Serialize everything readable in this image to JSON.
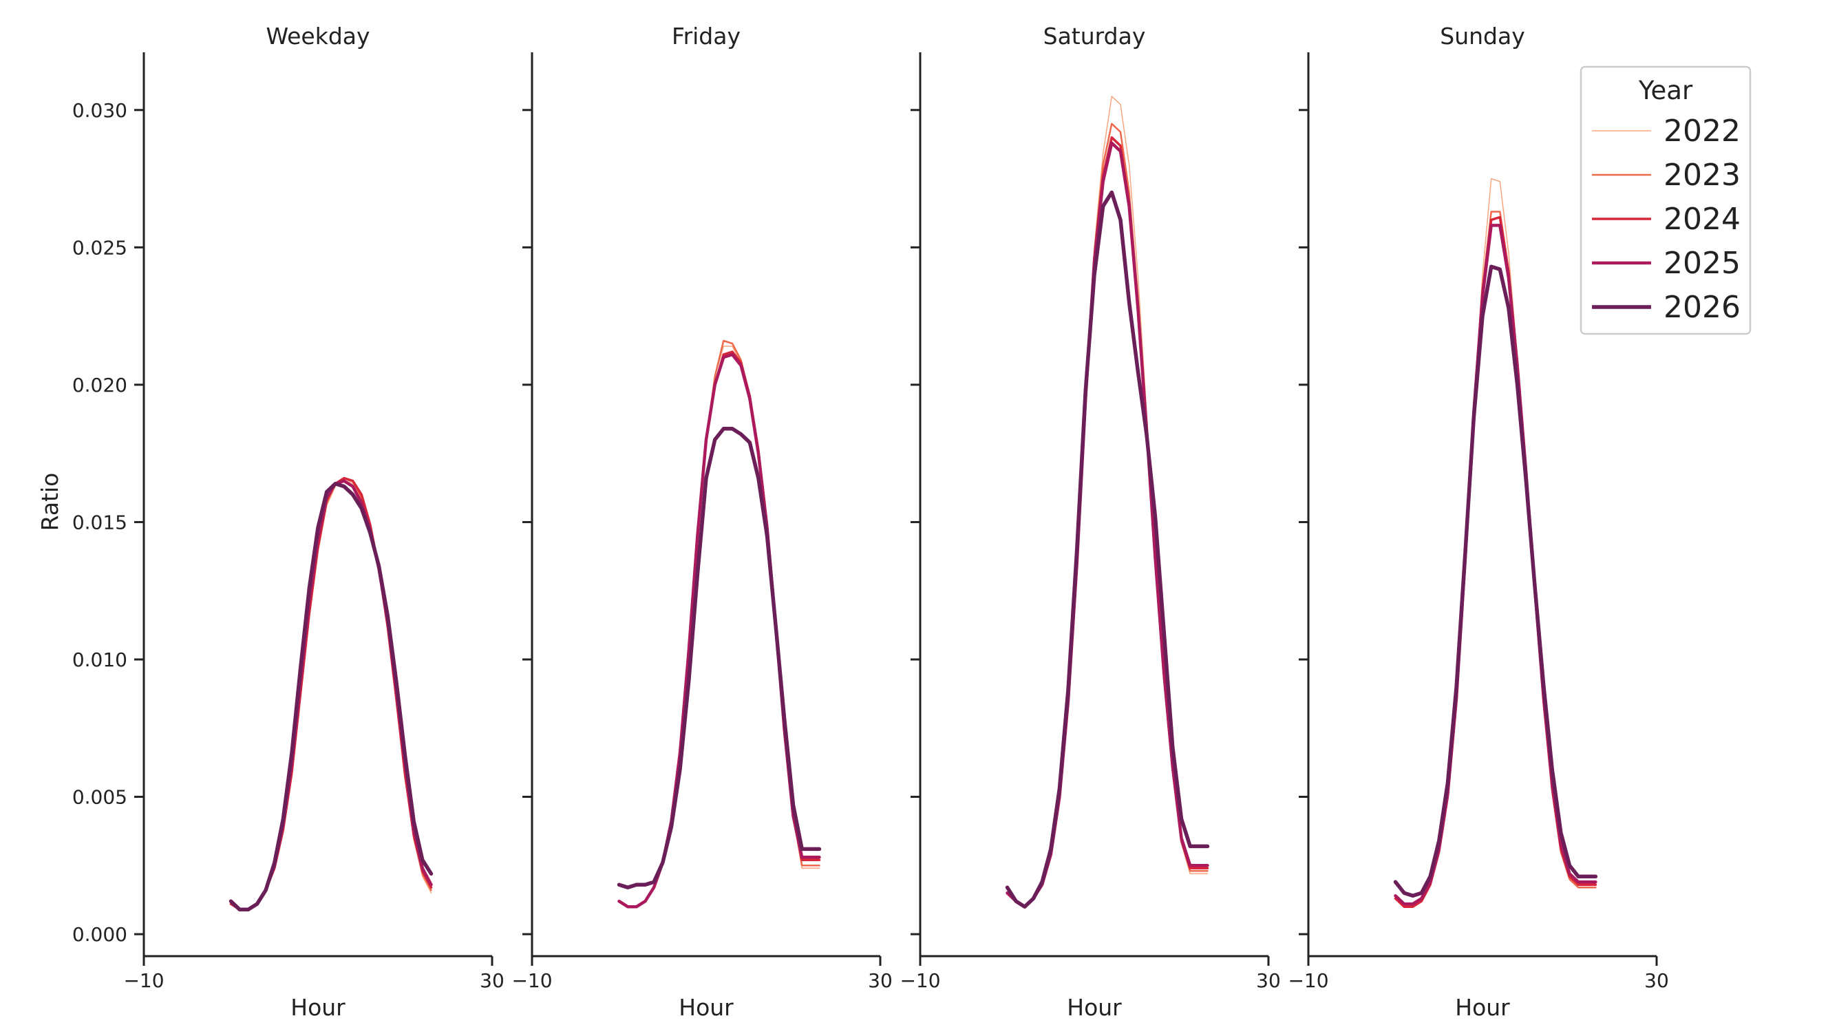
{
  "chart_data": {
    "type": "line",
    "ylabel": "Ratio",
    "xlabel": "Hour",
    "xlim": [
      -10,
      30
    ],
    "ylim": [
      -0.0008,
      0.0321
    ],
    "x_ticks": [
      {
        "value": -10,
        "label": "−10"
      },
      {
        "value": 30,
        "label": "30"
      }
    ],
    "y_ticks": [
      {
        "value": 0.0,
        "label": "0.000"
      },
      {
        "value": 0.005,
        "label": "0.005"
      },
      {
        "value": 0.01,
        "label": "0.010"
      },
      {
        "value": 0.015,
        "label": "0.015"
      },
      {
        "value": 0.02,
        "label": "0.020"
      },
      {
        "value": 0.025,
        "label": "0.025"
      },
      {
        "value": 0.03,
        "label": "0.030"
      }
    ],
    "legend": {
      "title": "Year",
      "position": "upper right",
      "entries": [
        "2022",
        "2023",
        "2024",
        "2025",
        "2026"
      ]
    },
    "series_styles": [
      {
        "name": "2022",
        "color": "#f5a67e",
        "width": 1.5
      },
      {
        "name": "2023",
        "color": "#ec6a4b",
        "width": 2.5
      },
      {
        "name": "2024",
        "color": "#d7263a",
        "width": 3.5
      },
      {
        "name": "2025",
        "color": "#ab1a5c",
        "width": 4.5
      },
      {
        "name": "2026",
        "color": "#6a1f58",
        "width": 5.5
      }
    ],
    "x": [
      0,
      1,
      2,
      3,
      4,
      5,
      6,
      7,
      8,
      9,
      10,
      11,
      12,
      13,
      14,
      15,
      16,
      17,
      18,
      19,
      20,
      21,
      22,
      23
    ],
    "panels": [
      {
        "title": "Weekday",
        "series": [
          {
            "name": "2022",
            "values": [
              0.0011,
              0.0009,
              0.0009,
              0.0011,
              0.0016,
              0.0024,
              0.0038,
              0.0058,
              0.0087,
              0.0115,
              0.0139,
              0.0156,
              0.0163,
              0.0166,
              0.0164,
              0.0158,
              0.0148,
              0.0133,
              0.0112,
              0.0085,
              0.0058,
              0.0035,
              0.0021,
              0.0015
            ]
          },
          {
            "name": "2023",
            "values": [
              0.0011,
              0.0009,
              0.0009,
              0.0011,
              0.0016,
              0.0024,
              0.0038,
              0.0058,
              0.0087,
              0.0116,
              0.014,
              0.0157,
              0.0164,
              0.0166,
              0.0165,
              0.0159,
              0.0148,
              0.0133,
              0.0112,
              0.0085,
              0.0058,
              0.0035,
              0.0022,
              0.0016
            ]
          },
          {
            "name": "2024",
            "values": [
              0.0011,
              0.0009,
              0.0009,
              0.0011,
              0.0016,
              0.0024,
              0.0038,
              0.0059,
              0.0088,
              0.0117,
              0.0141,
              0.0158,
              0.0164,
              0.0166,
              0.0165,
              0.016,
              0.0149,
              0.0133,
              0.0112,
              0.0086,
              0.0058,
              0.0036,
              0.0023,
              0.0017
            ]
          },
          {
            "name": "2025",
            "values": [
              0.0012,
              0.0009,
              0.0009,
              0.0011,
              0.0016,
              0.0025,
              0.004,
              0.0062,
              0.0092,
              0.0121,
              0.0144,
              0.0159,
              0.0164,
              0.0165,
              0.0163,
              0.0157,
              0.0147,
              0.0133,
              0.0114,
              0.0089,
              0.0062,
              0.0038,
              0.0024,
              0.0018
            ]
          },
          {
            "name": "2026",
            "values": [
              0.0012,
              0.0009,
              0.0009,
              0.0011,
              0.0016,
              0.0026,
              0.0042,
              0.0066,
              0.0097,
              0.0126,
              0.0148,
              0.0161,
              0.0164,
              0.0163,
              0.016,
              0.0155,
              0.0146,
              0.0134,
              0.0116,
              0.0092,
              0.0065,
              0.0041,
              0.0027,
              0.0022
            ]
          }
        ]
      },
      {
        "title": "Friday",
        "series": [
          {
            "name": "2022",
            "values": [
              0.0012,
              0.001,
              0.001,
              0.0012,
              0.0017,
              0.0026,
              0.0041,
              0.0066,
              0.0103,
              0.0145,
              0.018,
              0.0203,
              0.0214,
              0.0214,
              0.0208,
              0.0195,
              0.0177,
              0.015,
              0.0113,
              0.0075,
              0.0043,
              0.0024,
              0.0024,
              0.0024
            ]
          },
          {
            "name": "2023",
            "values": [
              0.0012,
              0.001,
              0.001,
              0.0012,
              0.0017,
              0.0026,
              0.0041,
              0.0066,
              0.0103,
              0.0145,
              0.018,
              0.0203,
              0.0216,
              0.0215,
              0.0209,
              0.0196,
              0.0177,
              0.015,
              0.0113,
              0.0075,
              0.0043,
              0.0025,
              0.0025,
              0.0025
            ]
          },
          {
            "name": "2024",
            "values": [
              0.0012,
              0.001,
              0.001,
              0.0012,
              0.0017,
              0.0026,
              0.0041,
              0.0066,
              0.0103,
              0.0145,
              0.018,
              0.02,
              0.0211,
              0.0212,
              0.0208,
              0.0196,
              0.0176,
              0.0149,
              0.0113,
              0.0075,
              0.0043,
              0.0027,
              0.0027,
              0.0027
            ]
          },
          {
            "name": "2025",
            "values": [
              0.0012,
              0.001,
              0.001,
              0.0012,
              0.0017,
              0.0026,
              0.0041,
              0.0066,
              0.0103,
              0.0145,
              0.018,
              0.02,
              0.021,
              0.0211,
              0.0207,
              0.0195,
              0.0175,
              0.0148,
              0.0112,
              0.0074,
              0.0043,
              0.0028,
              0.0028,
              0.0028
            ]
          },
          {
            "name": "2026",
            "values": [
              0.0018,
              0.0017,
              0.0018,
              0.0018,
              0.0019,
              0.0026,
              0.0039,
              0.006,
              0.0092,
              0.0131,
              0.0166,
              0.018,
              0.0184,
              0.0184,
              0.0182,
              0.0179,
              0.0166,
              0.0145,
              0.0112,
              0.0078,
              0.0047,
              0.0031,
              0.0031,
              0.0031
            ]
          }
        ]
      },
      {
        "title": "Saturday",
        "series": [
          {
            "name": "2022",
            "values": [
              0.0015,
              0.0012,
              0.001,
              0.0013,
              0.0018,
              0.0029,
              0.005,
              0.0085,
              0.0135,
              0.0195,
              0.025,
              0.0284,
              0.0305,
              0.0302,
              0.028,
              0.024,
              0.019,
              0.014,
              0.0095,
              0.006,
              0.0033,
              0.0022,
              0.0022,
              0.0022
            ]
          },
          {
            "name": "2023",
            "values": [
              0.0015,
              0.0012,
              0.001,
              0.0013,
              0.0018,
              0.0029,
              0.005,
              0.0085,
              0.0135,
              0.0195,
              0.0248,
              0.028,
              0.0295,
              0.0292,
              0.027,
              0.0232,
              0.0186,
              0.0138,
              0.0094,
              0.006,
              0.0034,
              0.0023,
              0.0023,
              0.0023
            ]
          },
          {
            "name": "2024",
            "values": [
              0.0015,
              0.0012,
              0.001,
              0.0013,
              0.0018,
              0.0029,
              0.005,
              0.0085,
              0.0135,
              0.0195,
              0.0246,
              0.0276,
              0.029,
              0.0287,
              0.0266,
              0.0229,
              0.0184,
              0.0137,
              0.0094,
              0.006,
              0.0034,
              0.0024,
              0.0024,
              0.0024
            ]
          },
          {
            "name": "2025",
            "values": [
              0.0015,
              0.0012,
              0.001,
              0.0013,
              0.0018,
              0.0029,
              0.005,
              0.0085,
              0.0135,
              0.0195,
              0.0245,
              0.0274,
              0.0288,
              0.0285,
              0.0265,
              0.0228,
              0.0184,
              0.0137,
              0.0095,
              0.0061,
              0.0035,
              0.0025,
              0.0025,
              0.0025
            ]
          },
          {
            "name": "2026",
            "values": [
              0.0017,
              0.0012,
              0.001,
              0.0013,
              0.0019,
              0.0031,
              0.0053,
              0.0089,
              0.014,
              0.0198,
              0.024,
              0.0265,
              0.027,
              0.026,
              0.023,
              0.0205,
              0.0182,
              0.0152,
              0.011,
              0.0068,
              0.0042,
              0.0032,
              0.0032,
              0.0032
            ]
          }
        ]
      },
      {
        "title": "Sunday",
        "series": [
          {
            "name": "2022",
            "values": [
              0.0013,
              0.001,
              0.001,
              0.0012,
              0.0018,
              0.003,
              0.005,
              0.0085,
              0.0135,
              0.019,
              0.024,
              0.0275,
              0.0274,
              0.0248,
              0.021,
              0.0168,
              0.0125,
              0.0085,
              0.0052,
              0.003,
              0.002,
              0.0017,
              0.0017,
              0.0017
            ]
          },
          {
            "name": "2023",
            "values": [
              0.0013,
              0.001,
              0.001,
              0.0012,
              0.0018,
              0.003,
              0.005,
              0.0085,
              0.0135,
              0.019,
              0.0235,
              0.0263,
              0.0263,
              0.0242,
              0.0208,
              0.0168,
              0.0125,
              0.0085,
              0.0052,
              0.003,
              0.002,
              0.0017,
              0.0017,
              0.0017
            ]
          },
          {
            "name": "2024",
            "values": [
              0.0013,
              0.001,
              0.001,
              0.0012,
              0.0018,
              0.003,
              0.005,
              0.0085,
              0.0135,
              0.019,
              0.0234,
              0.026,
              0.0261,
              0.0241,
              0.0208,
              0.0168,
              0.0125,
              0.0085,
              0.0053,
              0.0031,
              0.0021,
              0.0018,
              0.0018,
              0.0018
            ]
          },
          {
            "name": "2025",
            "values": [
              0.0014,
              0.0011,
              0.0011,
              0.0013,
              0.0019,
              0.0031,
              0.0051,
              0.0086,
              0.0136,
              0.019,
              0.0232,
              0.0258,
              0.0258,
              0.0239,
              0.0207,
              0.0168,
              0.0126,
              0.0087,
              0.0055,
              0.0033,
              0.0022,
              0.0019,
              0.0019,
              0.0019
            ]
          },
          {
            "name": "2026",
            "values": [
              0.0019,
              0.0015,
              0.0014,
              0.0015,
              0.0021,
              0.0034,
              0.0055,
              0.009,
              0.0138,
              0.0188,
              0.0225,
              0.0243,
              0.0242,
              0.0228,
              0.02,
              0.0165,
              0.0127,
              0.0091,
              0.006,
              0.0037,
              0.0025,
              0.0021,
              0.0021,
              0.0021
            ]
          }
        ]
      }
    ]
  }
}
